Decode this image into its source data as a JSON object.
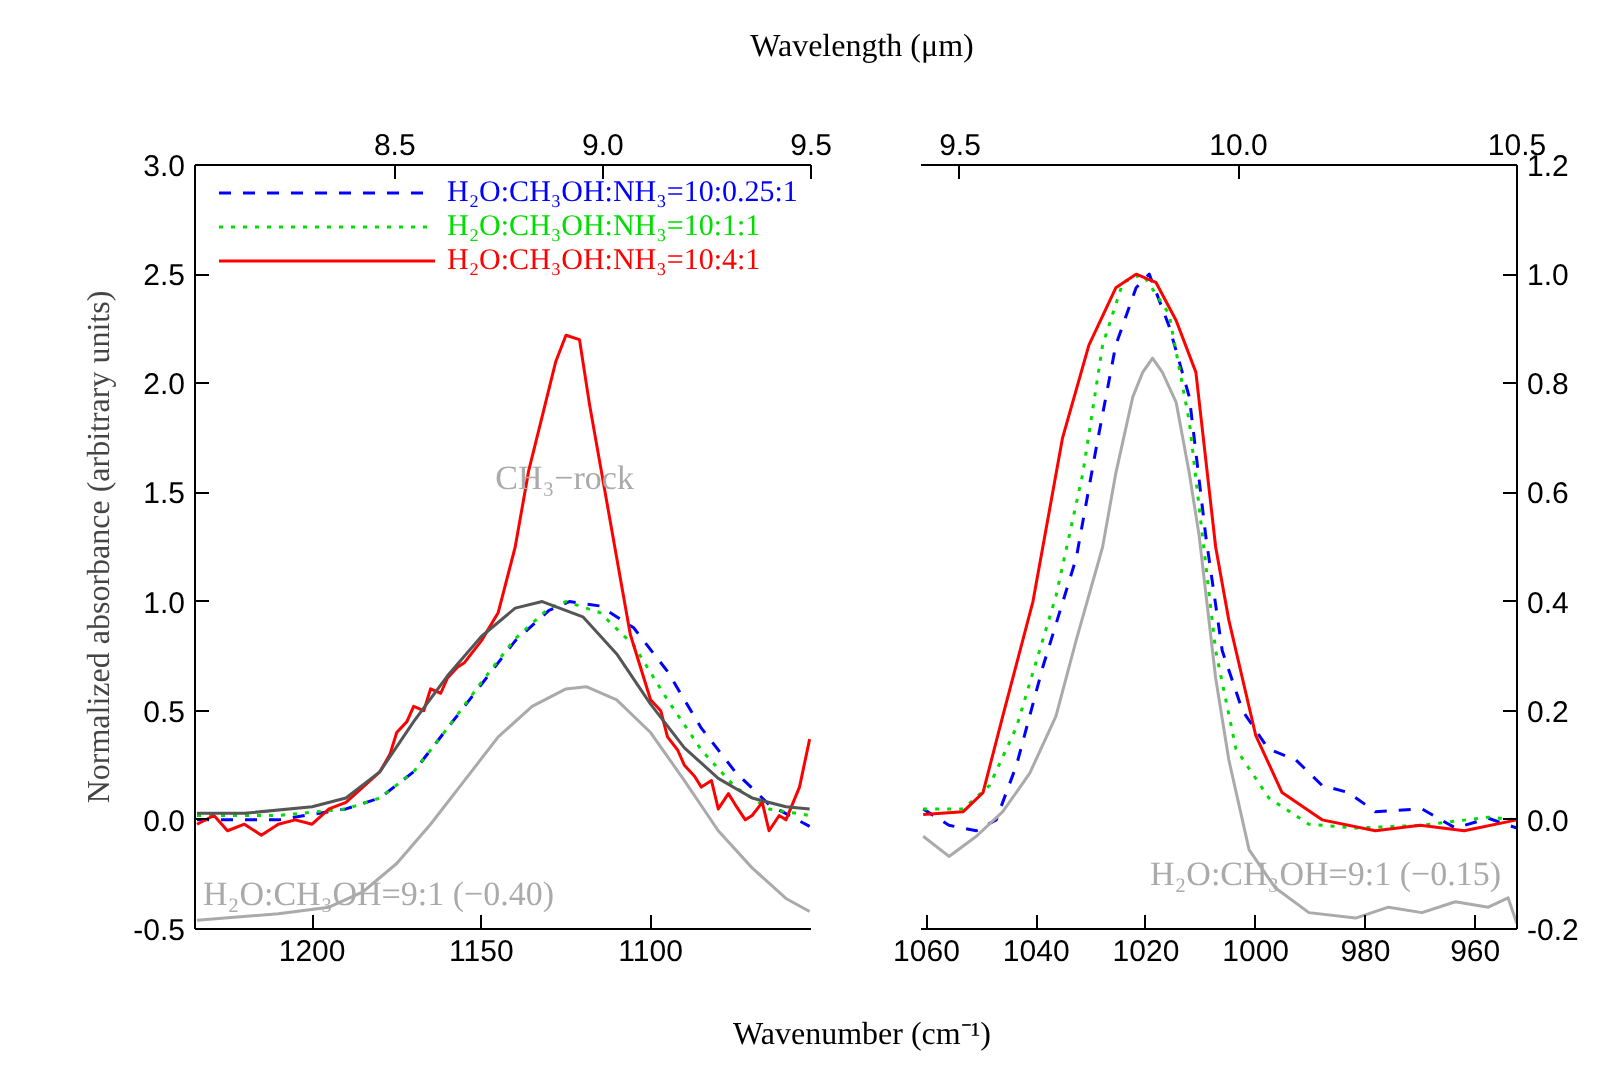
{
  "chart_data": [
    {
      "type": "line",
      "x2label": "Wavelength (μm)",
      "xlabel": "Wavenumber (cm⁻¹)",
      "ylabel": "Normalized absorbance (arbitrary units)",
      "xlim": [
        1234.6,
        1052.6
      ],
      "xticks": [
        1200,
        1150,
        1100
      ],
      "x2lim": [
        8.02,
        9.5
      ],
      "x2ticks": [
        {
          "value": 8.5,
          "label": "8.5"
        },
        {
          "value": 9.0,
          "label": "9.0"
        },
        {
          "value": 9.5,
          "label": "9.5"
        }
      ],
      "ylim": [
        -0.5,
        3.0
      ],
      "yticks": [
        {
          "value": -0.5,
          "label": "-0.5"
        },
        {
          "value": 0,
          "label": "0.0"
        },
        {
          "value": 0.5,
          "label": "0.5"
        },
        {
          "value": 1,
          "label": "1.0"
        },
        {
          "value": 1.5,
          "label": "1.5"
        },
        {
          "value": 2,
          "label": "2.0"
        },
        {
          "value": 2.5,
          "label": "2.5"
        },
        {
          "value": 3,
          "label": "3.0"
        }
      ],
      "legend": "top",
      "grid": false,
      "series": [
        {
          "name": "H₂O:CH₃OH:NH₃=10:0.25:1",
          "color": "#0000ff",
          "line_style": "dashed",
          "x": [
            1234,
            1210,
            1190,
            1180,
            1170,
            1160,
            1150,
            1140,
            1130,
            1124,
            1115,
            1105,
            1095,
            1085,
            1075,
            1065,
            1053
          ],
          "values": [
            0.0,
            0.0,
            0.05,
            0.1,
            0.22,
            0.42,
            0.62,
            0.82,
            0.96,
            1.0,
            0.98,
            0.88,
            0.68,
            0.42,
            0.22,
            0.07,
            -0.03
          ]
        },
        {
          "name": "H₂O:CH₃OH:NH₃=10:1:1",
          "color": "#00dd00",
          "line_style": "dotted",
          "x": [
            1234,
            1210,
            1190,
            1180,
            1170,
            1160,
            1150,
            1140,
            1130,
            1125,
            1115,
            1105,
            1095,
            1085,
            1075,
            1065,
            1053
          ],
          "values": [
            0.02,
            0.02,
            0.05,
            0.1,
            0.22,
            0.42,
            0.63,
            0.83,
            0.97,
            1.0,
            0.95,
            0.8,
            0.55,
            0.32,
            0.15,
            0.05,
            0.02
          ]
        },
        {
          "name": "H₂O:CH₃OH:NH₃=10:4:1",
          "color": "#ff0000",
          "line_style": "solid",
          "x": [
            1234,
            1229,
            1225,
            1220,
            1215,
            1210,
            1205,
            1200,
            1195,
            1190,
            1185,
            1180,
            1177,
            1175,
            1172,
            1170,
            1167,
            1165,
            1162,
            1160,
            1157,
            1155,
            1150,
            1145,
            1140,
            1136,
            1132,
            1128,
            1125,
            1121,
            1118,
            1114,
            1110,
            1106,
            1103,
            1100,
            1097,
            1095,
            1092,
            1090,
            1087,
            1085,
            1082,
            1080,
            1077,
            1075,
            1072,
            1070,
            1067,
            1065,
            1062,
            1060,
            1056,
            1053
          ],
          "values": [
            -0.02,
            0.02,
            -0.05,
            -0.02,
            -0.07,
            -0.02,
            0.0,
            -0.02,
            0.05,
            0.08,
            0.15,
            0.22,
            0.3,
            0.4,
            0.45,
            0.52,
            0.5,
            0.6,
            0.58,
            0.65,
            0.7,
            0.72,
            0.82,
            0.95,
            1.25,
            1.6,
            1.85,
            2.1,
            2.22,
            2.2,
            1.9,
            1.55,
            1.2,
            0.85,
            0.7,
            0.55,
            0.5,
            0.38,
            0.32,
            0.25,
            0.2,
            0.15,
            0.18,
            0.05,
            0.12,
            0.07,
            0.0,
            0.02,
            0.08,
            -0.05,
            0.02,
            0.0,
            0.15,
            0.37
          ]
        },
        {
          "color": "#555555",
          "line_style": "solid",
          "x": [
            1234,
            1220,
            1200,
            1190,
            1180,
            1170,
            1160,
            1150,
            1140,
            1132,
            1120,
            1110,
            1100,
            1090,
            1080,
            1070,
            1060,
            1053
          ],
          "values": [
            0.03,
            0.03,
            0.06,
            0.1,
            0.22,
            0.45,
            0.66,
            0.84,
            0.97,
            1.0,
            0.93,
            0.76,
            0.53,
            0.33,
            0.19,
            0.1,
            0.06,
            0.05
          ]
        },
        {
          "color": "#aaaaaa",
          "line_style": "solid",
          "x": [
            1234,
            1210,
            1195,
            1185,
            1175,
            1165,
            1155,
            1145,
            1135,
            1125,
            1119,
            1110,
            1100,
            1090,
            1080,
            1070,
            1060,
            1053
          ],
          "values": [
            -0.46,
            -0.43,
            -0.4,
            -0.33,
            -0.2,
            -0.02,
            0.18,
            0.38,
            0.52,
            0.6,
            0.61,
            0.55,
            0.4,
            0.18,
            -0.05,
            -0.22,
            -0.36,
            -0.42
          ]
        }
      ],
      "annotations": [
        "H₂O:CH₃OH=9:1 (−0.40)",
        "CH₃−rock"
      ]
    },
    {
      "type": "line",
      "xlim": [
        1061,
        952.38
      ],
      "xticks": [
        1060,
        1040,
        1020,
        1000,
        980,
        960
      ],
      "x2lim": [
        9.43,
        10.5
      ],
      "x2ticks": [
        {
          "value": 9.5,
          "label": "9.5"
        },
        {
          "value": 10.0,
          "label": "10.0"
        },
        {
          "value": 10.5,
          "label": "10.5"
        }
      ],
      "y2lim": [
        -0.2,
        1.2
      ],
      "y2ticks": [
        {
          "value": -0.2,
          "label": "-0.2"
        },
        {
          "value": 0,
          "label": "0.0"
        },
        {
          "value": 0.2,
          "label": "0.2"
        },
        {
          "value": 0.4,
          "label": "0.4"
        },
        {
          "value": 0.6,
          "label": "0.6"
        },
        {
          "value": 0.8,
          "label": "0.8"
        },
        {
          "value": 1.0,
          "label": "1.0"
        },
        {
          "value": 1.2,
          "label": "1.2"
        }
      ],
      "grid": false,
      "series": [
        {
          "color": "#0000ff",
          "line_style": "dashed",
          "axis": "y2",
          "x": [
            1060.6,
            1055.9,
            1050.9,
            1047.3,
            1043.6,
            1038.8,
            1032.7,
            1029.1,
            1025.5,
            1021.8,
            1019.4,
            1015.8,
            1012.1,
            1009.1,
            1006.1,
            1002.4,
            997.7,
            992.7,
            987.9,
            983.1,
            978.2,
            969.7,
            963.6,
            957.6,
            952.4
          ],
          "values": [
            0.02,
            -0.01,
            -0.02,
            0.0,
            0.1,
            0.28,
            0.48,
            0.68,
            0.87,
            0.975,
            1.0,
            0.905,
            0.775,
            0.52,
            0.31,
            0.2,
            0.13,
            0.11,
            0.063,
            0.05,
            0.015,
            0.02,
            -0.015,
            0.003,
            -0.015
          ]
        },
        {
          "color": "#00dd00",
          "line_style": "dotted",
          "axis": "y2",
          "x": [
            1060.6,
            1053.3,
            1048.5,
            1043.6,
            1036.4,
            1031.5,
            1027.9,
            1024.2,
            1020.6,
            1015.8,
            1012.1,
            1009.7,
            1007.3,
            1003.6,
            997.6,
            990.3,
            981.8,
            969.7,
            957.6,
            952.4
          ],
          "values": [
            0.02,
            0.02,
            0.063,
            0.17,
            0.41,
            0.635,
            0.87,
            0.985,
            1.0,
            0.927,
            0.73,
            0.52,
            0.31,
            0.13,
            0.04,
            -0.008,
            -0.015,
            -0.01,
            0.005,
            0.0
          ]
        },
        {
          "color": "#ff0000",
          "line_style": "solid",
          "axis": "y2",
          "x": [
            1060.6,
            1053.3,
            1049.7,
            1046.1,
            1040.6,
            1035.2,
            1030.4,
            1025.5,
            1021.8,
            1018.2,
            1014.5,
            1010.9,
            1007.3,
            1004.9,
            1000,
            995.2,
            987.9,
            978.2,
            970,
            962,
            952.4
          ],
          "values": [
            0.01,
            0.015,
            0.05,
            0.19,
            0.4,
            0.7,
            0.87,
            0.975,
            1.0,
            0.985,
            0.915,
            0.82,
            0.5,
            0.366,
            0.155,
            0.05,
            0.0,
            -0.02,
            -0.01,
            -0.02,
            0.0
          ]
        },
        {
          "color": "#aaaaaa",
          "line_style": "solid",
          "axis": "y2",
          "x": [
            1060.6,
            1055.9,
            1050.9,
            1046.1,
            1041.2,
            1036.4,
            1032.7,
            1027.9,
            1025.5,
            1022.4,
            1020.6,
            1018.8,
            1017.0,
            1014.5,
            1012.1,
            1010.3,
            1007.3,
            1004.9,
            1001.2,
            996.4,
            990.3,
            981.8,
            975.8,
            969.7,
            963.6,
            957.6,
            954,
            952.4
          ],
          "values": [
            -0.03,
            -0.067,
            -0.03,
            0.015,
            0.085,
            0.19,
            0.33,
            0.5,
            0.635,
            0.775,
            0.82,
            0.846,
            0.82,
            0.765,
            0.635,
            0.52,
            0.26,
            0.11,
            -0.055,
            -0.125,
            -0.17,
            -0.18,
            -0.16,
            -0.17,
            -0.15,
            -0.16,
            -0.143,
            -0.19
          ]
        }
      ],
      "annotations": [
        "H₂O:CH₃OH=9:1 (−0.15)"
      ]
    }
  ]
}
